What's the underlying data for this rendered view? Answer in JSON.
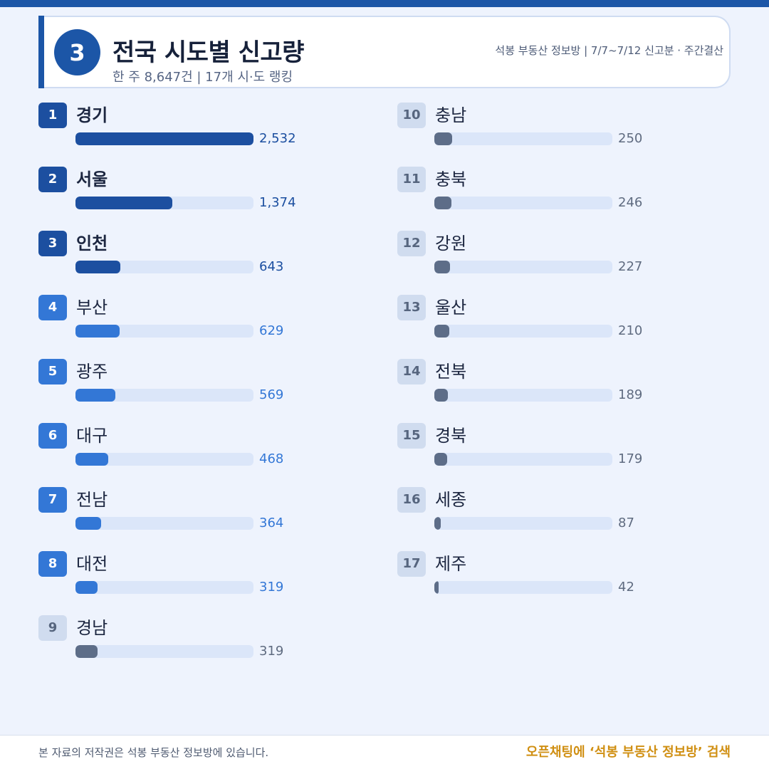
{
  "header": {
    "number": "3",
    "title": "전국 시도별 신고량",
    "subtitle": "한 주 8,647건 | 17개 시·도 랭킹",
    "meta": "석봉 부동산 정보방 | 7/7~7/12 신고분 · 주간결산"
  },
  "colors": {
    "tier1": "#1c4fa0",
    "tier2": "#3377d6",
    "tier3": "#5d6d88",
    "track": "#dbe6f9",
    "accent": "#d08f12"
  },
  "chart_data": {
    "type": "bar",
    "orientation": "horizontal",
    "categories": [
      "경기",
      "서울",
      "인천",
      "부산",
      "광주",
      "대구",
      "전남",
      "대전",
      "경남",
      "충남",
      "충북",
      "강원",
      "울산",
      "전북",
      "경북",
      "세종",
      "제주"
    ],
    "values": [
      2532,
      1374,
      643,
      629,
      569,
      468,
      364,
      319,
      319,
      250,
      246,
      227,
      210,
      189,
      179,
      87,
      42
    ],
    "ranks": [
      "1",
      "2",
      "3",
      "4",
      "5",
      "6",
      "7",
      "8",
      "9",
      "10",
      "11",
      "12",
      "13",
      "14",
      "15",
      "16",
      "17"
    ],
    "value_labels": [
      "2,532",
      "1,374",
      "643",
      "629",
      "569",
      "468",
      "364",
      "319",
      "319",
      "250",
      "246",
      "227",
      "210",
      "189",
      "179",
      "87",
      "42"
    ],
    "xlim": [
      0,
      2532
    ]
  },
  "footer": {
    "copyright": "본 자료의 저작권은 석봉 부동산 정보방에 있습니다.",
    "cta": "오픈채팅에 ‘석봉 부동산 정보방’ 검색"
  }
}
